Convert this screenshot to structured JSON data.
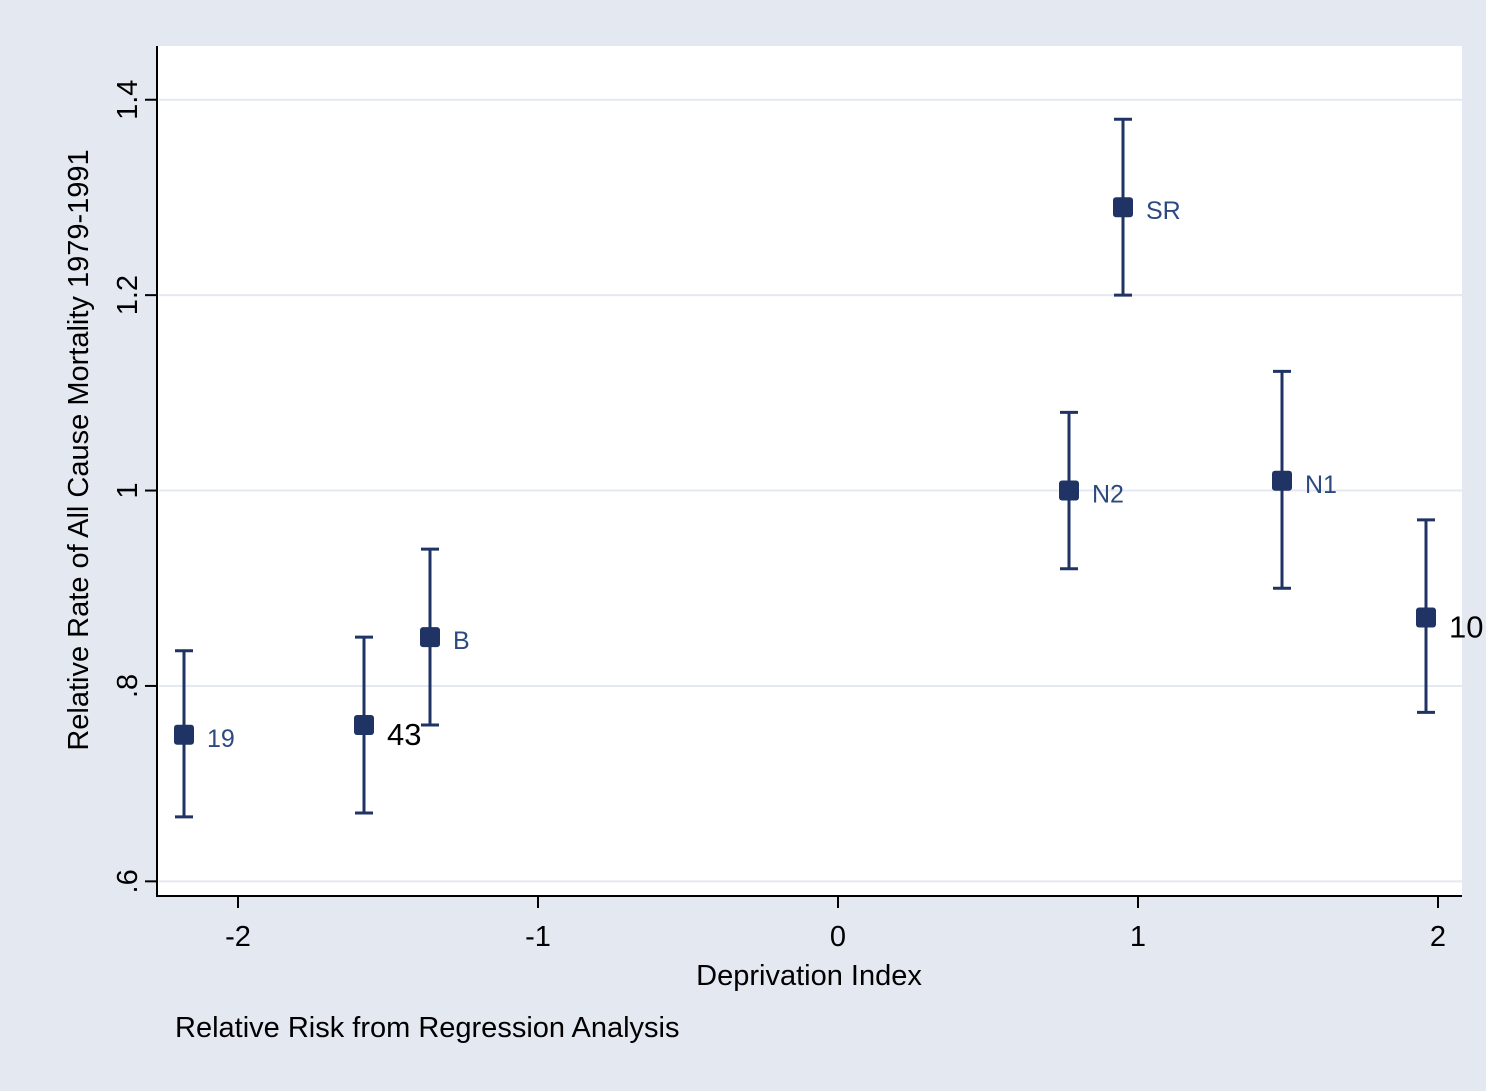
{
  "chart_data": {
    "type": "scatter",
    "xlabel": "Deprivation Index",
    "ylabel": "Relative Rate of All Cause Mortality 1979-1991",
    "note": "Relative Risk from Regression Analysis",
    "xlim": [
      -2.27,
      2.08
    ],
    "ylim": [
      0.585,
      1.455
    ],
    "x_ticks": [
      {
        "value": -2,
        "label": "-2"
      },
      {
        "value": -1,
        "label": "-1"
      },
      {
        "value": 0,
        "label": "0"
      },
      {
        "value": 1,
        "label": "1"
      },
      {
        "value": 2,
        "label": "2"
      }
    ],
    "y_ticks": [
      {
        "value": 0.6,
        "label": ".6"
      },
      {
        "value": 0.8,
        "label": ".8"
      },
      {
        "value": 1.0,
        "label": "1"
      },
      {
        "value": 1.2,
        "label": "1.2"
      },
      {
        "value": 1.4,
        "label": "1.4"
      }
    ],
    "grid": true,
    "colors": {
      "background": "#e4e8f1",
      "plot_area": "#ffffff",
      "marker": "#1f3464",
      "gridline": "#e4e8f1",
      "label": "#2c4a80",
      "label_emphasis": "#000000"
    },
    "points": [
      {
        "label": "19",
        "x": -2.18,
        "y": 0.75,
        "lower": 0.666,
        "upper": 0.836,
        "emphasis": false
      },
      {
        "label": "43",
        "x": -1.58,
        "y": 0.76,
        "lower": 0.67,
        "upper": 0.85,
        "emphasis": true
      },
      {
        "label": "B",
        "x": -1.36,
        "y": 0.85,
        "lower": 0.76,
        "upper": 0.94,
        "emphasis": false
      },
      {
        "label": "N2",
        "x": 0.77,
        "y": 1.0,
        "lower": 0.92,
        "upper": 1.08,
        "emphasis": false
      },
      {
        "label": "SR",
        "x": 0.95,
        "y": 1.29,
        "lower": 1.2,
        "upper": 1.38,
        "emphasis": false
      },
      {
        "label": "N1",
        "x": 1.48,
        "y": 1.01,
        "lower": 0.9,
        "upper": 1.122,
        "emphasis": false
      },
      {
        "label": "10",
        "x": 1.96,
        "y": 0.87,
        "lower": 0.773,
        "upper": 0.97,
        "emphasis": true
      }
    ]
  }
}
